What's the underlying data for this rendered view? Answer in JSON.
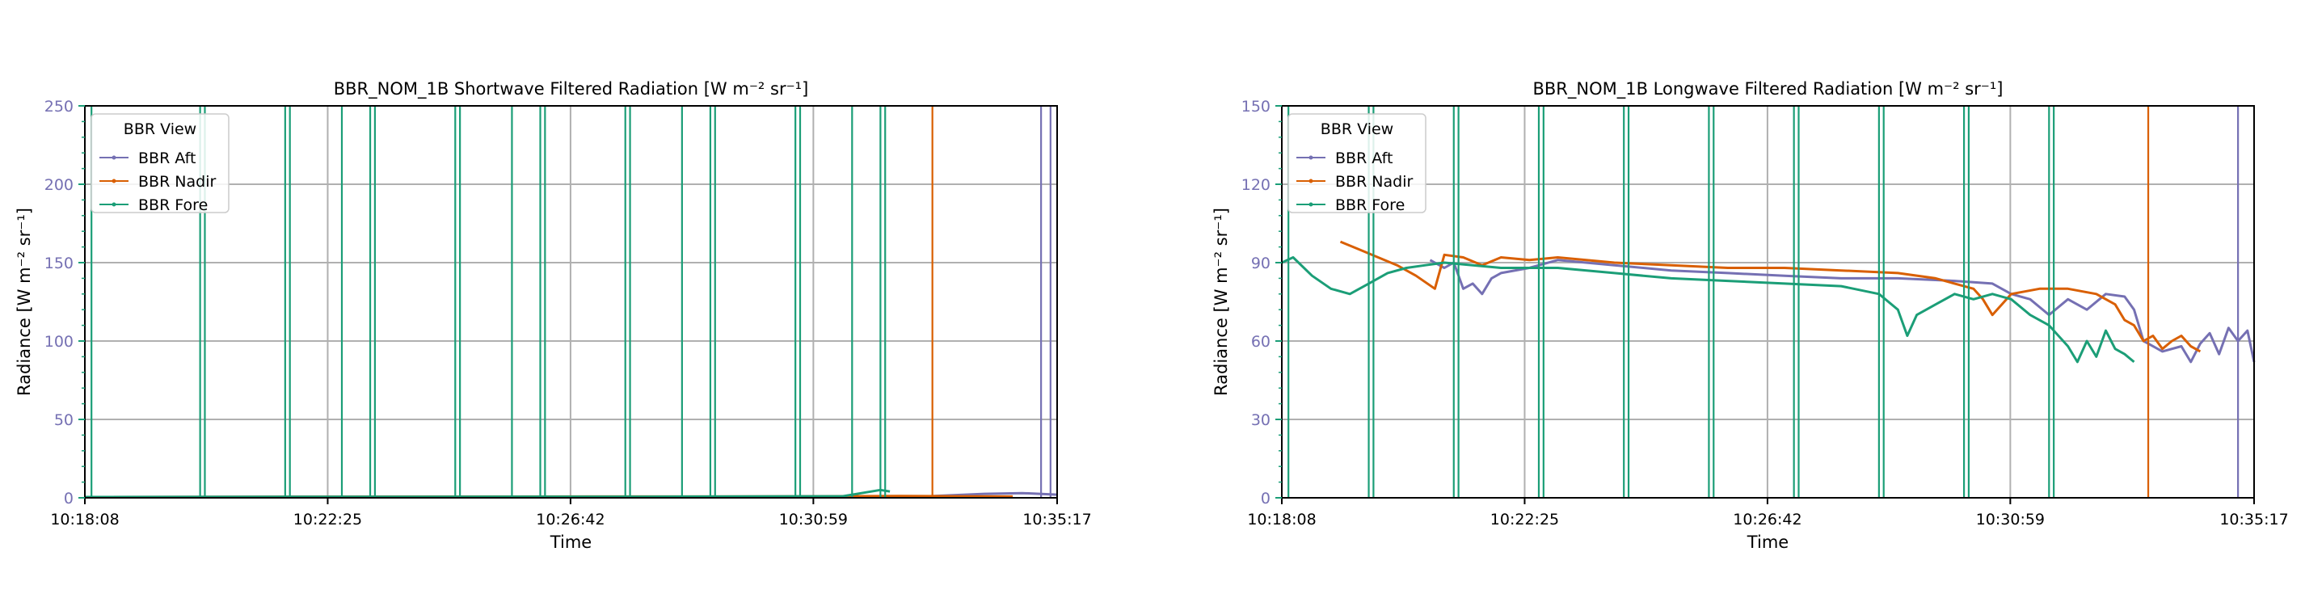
{
  "chart_data": [
    {
      "type": "line",
      "title": "BBR_NOM_1B Shortwave Filtered Radiation [W m⁻² sr⁻¹]",
      "xlabel": "Time",
      "ylabel": "Radiance [W m⁻² sr⁻¹]",
      "x_ticks": [
        "10:18:08",
        "10:22:25",
        "10:26:42",
        "10:30:59",
        "10:35:17"
      ],
      "xlim": [
        "10:18:08",
        "10:35:17"
      ],
      "y_ticks": [
        0,
        50,
        100,
        150,
        200,
        250
      ],
      "ylim": [
        0,
        250
      ],
      "grid": true,
      "legend": {
        "title": "BBR View",
        "placement": "top-left"
      },
      "series": [
        {
          "name": "BBR Aft",
          "color": "#7570b3",
          "points": [
            [
              "10:18:08",
              0.5
            ],
            [
              "10:25:00",
              0.7
            ],
            [
              "10:32:00",
              0.8
            ],
            [
              "10:33:00",
              1
            ],
            [
              "10:34:00",
              2.5
            ],
            [
              "10:34:40",
              3
            ],
            [
              "10:35:17",
              2
            ]
          ],
          "spikes": [
            "10:35:00",
            "10:35:10"
          ]
        },
        {
          "name": "BBR Nadir",
          "color": "#d95f02",
          "points": [
            [
              "10:18:08",
              0.5
            ],
            [
              "10:22:00",
              0.6
            ],
            [
              "10:27:00",
              0.8
            ],
            [
              "10:31:00",
              0.9
            ],
            [
              "10:32:30",
              1.2
            ],
            [
              "10:33:30",
              1
            ],
            [
              "10:34:30",
              0.8
            ]
          ],
          "spikes": [
            "10:33:05"
          ]
        },
        {
          "name": "BBR Fore",
          "color": "#1b9e77",
          "points": [
            [
              "10:18:08",
              0.5
            ],
            [
              "10:22:00",
              0.6
            ],
            [
              "10:28:00",
              0.7
            ],
            [
              "10:31:30",
              1
            ],
            [
              "10:31:50",
              3
            ],
            [
              "10:32:10",
              5
            ],
            [
              "10:32:20",
              4
            ]
          ],
          "spikes": [
            "10:18:15",
            "10:20:10",
            "10:20:15",
            "10:21:40",
            "10:21:45",
            "10:22:40",
            "10:23:10",
            "10:23:15",
            "10:24:40",
            "10:24:45",
            "10:25:40",
            "10:26:10",
            "10:26:15",
            "10:27:40",
            "10:27:45",
            "10:28:40",
            "10:29:10",
            "10:29:15",
            "10:30:40",
            "10:30:45",
            "10:31:40",
            "10:32:10",
            "10:32:15"
          ]
        }
      ]
    },
    {
      "type": "line",
      "title": "BBR_NOM_1B Longwave Filtered Radiation [W m⁻² sr⁻¹]",
      "xlabel": "Time",
      "ylabel": "Radiance [W m⁻² sr⁻¹]",
      "x_ticks": [
        "10:18:08",
        "10:22:25",
        "10:26:42",
        "10:30:59",
        "10:35:17"
      ],
      "xlim": [
        "10:18:08",
        "10:35:17"
      ],
      "y_ticks": [
        0,
        30,
        60,
        90,
        120,
        150
      ],
      "ylim": [
        0,
        150
      ],
      "grid": true,
      "legend": {
        "title": "BBR View",
        "placement": "top-left"
      },
      "series": [
        {
          "name": "BBR Aft",
          "color": "#7570b3",
          "points": [
            [
              "10:20:45",
              91
            ],
            [
              "10:21:00",
              88
            ],
            [
              "10:21:10",
              90
            ],
            [
              "10:21:20",
              80
            ],
            [
              "10:21:30",
              82
            ],
            [
              "10:21:40",
              78
            ],
            [
              "10:21:50",
              84
            ],
            [
              "10:22:00",
              86
            ],
            [
              "10:22:30",
              88
            ],
            [
              "10:23:00",
              91
            ],
            [
              "10:24:00",
              89
            ],
            [
              "10:25:00",
              87
            ],
            [
              "10:26:00",
              86
            ],
            [
              "10:27:00",
              85
            ],
            [
              "10:28:00",
              84
            ],
            [
              "10:29:00",
              84
            ],
            [
              "10:30:00",
              83
            ],
            [
              "10:30:40",
              82
            ],
            [
              "10:31:00",
              78
            ],
            [
              "10:31:20",
              76
            ],
            [
              "10:31:40",
              70
            ],
            [
              "10:32:00",
              76
            ],
            [
              "10:32:20",
              72
            ],
            [
              "10:32:40",
              78
            ],
            [
              "10:33:00",
              77
            ],
            [
              "10:33:10",
              72
            ],
            [
              "10:33:20",
              60
            ],
            [
              "10:33:40",
              56
            ],
            [
              "10:34:00",
              58
            ],
            [
              "10:34:10",
              52
            ],
            [
              "10:34:20",
              59
            ],
            [
              "10:34:30",
              63
            ],
            [
              "10:34:40",
              55
            ],
            [
              "10:34:50",
              65
            ],
            [
              "10:35:00",
              60
            ],
            [
              "10:35:10",
              64
            ],
            [
              "10:35:17",
              52
            ]
          ],
          "spikes": [
            "10:35:00"
          ]
        },
        {
          "name": "BBR Nadir",
          "color": "#d95f02",
          "points": [
            [
              "10:19:10",
              98
            ],
            [
              "10:19:30",
              95
            ],
            [
              "10:19:50",
              92
            ],
            [
              "10:20:10",
              89
            ],
            [
              "10:20:30",
              85
            ],
            [
              "10:20:50",
              80
            ],
            [
              "10:21:00",
              93
            ],
            [
              "10:21:20",
              92
            ],
            [
              "10:21:40",
              89
            ],
            [
              "10:22:00",
              92
            ],
            [
              "10:22:30",
              91
            ],
            [
              "10:23:00",
              92
            ],
            [
              "10:24:00",
              90
            ],
            [
              "10:25:00",
              89
            ],
            [
              "10:26:00",
              88
            ],
            [
              "10:27:00",
              88
            ],
            [
              "10:28:00",
              87
            ],
            [
              "10:29:00",
              86
            ],
            [
              "10:29:40",
              84
            ],
            [
              "10:30:00",
              82
            ],
            [
              "10:30:20",
              80
            ],
            [
              "10:30:30",
              76
            ],
            [
              "10:30:40",
              70
            ],
            [
              "10:30:50",
              74
            ],
            [
              "10:31:00",
              78
            ],
            [
              "10:31:30",
              80
            ],
            [
              "10:32:00",
              80
            ],
            [
              "10:32:30",
              78
            ],
            [
              "10:32:50",
              74
            ],
            [
              "10:33:00",
              68
            ],
            [
              "10:33:10",
              66
            ],
            [
              "10:33:20",
              60
            ],
            [
              "10:33:30",
              62
            ],
            [
              "10:33:40",
              57
            ],
            [
              "10:33:50",
              60
            ],
            [
              "10:34:00",
              62
            ],
            [
              "10:34:10",
              58
            ],
            [
              "10:34:20",
              56
            ]
          ],
          "spikes": [
            "10:33:25"
          ]
        },
        {
          "name": "BBR Fore",
          "color": "#1b9e77",
          "points": [
            [
              "10:18:08",
              90
            ],
            [
              "10:18:20",
              92
            ],
            [
              "10:18:40",
              85
            ],
            [
              "10:19:00",
              80
            ],
            [
              "10:19:20",
              78
            ],
            [
              "10:19:40",
              82
            ],
            [
              "10:20:00",
              86
            ],
            [
              "10:20:20",
              88
            ],
            [
              "10:20:40",
              89
            ],
            [
              "10:21:00",
              90
            ],
            [
              "10:21:30",
              89
            ],
            [
              "10:22:00",
              88
            ],
            [
              "10:23:00",
              88
            ],
            [
              "10:24:00",
              86
            ],
            [
              "10:25:00",
              84
            ],
            [
              "10:26:00",
              83
            ],
            [
              "10:27:00",
              82
            ],
            [
              "10:28:00",
              81
            ],
            [
              "10:28:40",
              78
            ],
            [
              "10:29:00",
              72
            ],
            [
              "10:29:10",
              62
            ],
            [
              "10:29:20",
              70
            ],
            [
              "10:29:40",
              74
            ],
            [
              "10:30:00",
              78
            ],
            [
              "10:30:20",
              76
            ],
            [
              "10:30:40",
              78
            ],
            [
              "10:31:00",
              76
            ],
            [
              "10:31:20",
              70
            ],
            [
              "10:31:40",
              66
            ],
            [
              "10:32:00",
              58
            ],
            [
              "10:32:10",
              52
            ],
            [
              "10:32:20",
              60
            ],
            [
              "10:32:30",
              54
            ],
            [
              "10:32:40",
              64
            ],
            [
              "10:32:50",
              57
            ],
            [
              "10:33:00",
              55
            ],
            [
              "10:33:10",
              52
            ]
          ],
          "spikes": [
            "10:18:15",
            "10:19:40",
            "10:19:45",
            "10:21:10",
            "10:21:15",
            "10:22:40",
            "10:22:45",
            "10:24:10",
            "10:24:15",
            "10:25:40",
            "10:25:45",
            "10:27:10",
            "10:27:15",
            "10:28:40",
            "10:28:45",
            "10:30:10",
            "10:30:15",
            "10:31:40",
            "10:31:45"
          ]
        }
      ]
    }
  ]
}
